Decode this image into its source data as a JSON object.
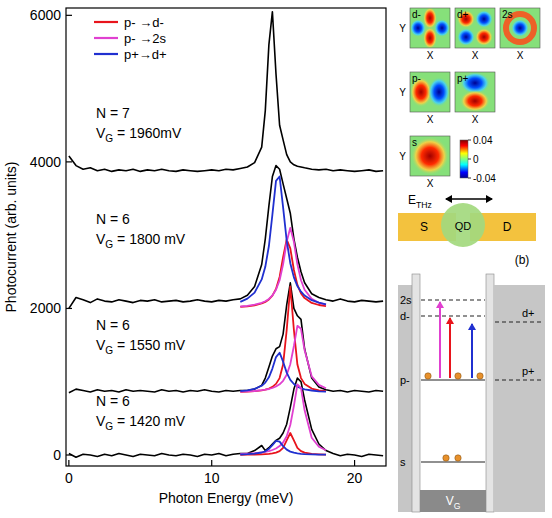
{
  "chart_data": {
    "type": "line",
    "x_label": "Photon Energy (meV)",
    "y_label": "Photocurrent (arb. units)",
    "xlim": [
      -0.2,
      22.2
    ],
    "xticks": [
      0,
      10,
      20
    ],
    "ylim": [
      -150,
      6100
    ],
    "yticks": [
      0,
      2000,
      4000,
      6000
    ],
    "grid": false,
    "legend": "upper left",
    "annotations": [
      {
        "n": "N = 7",
        "v": "V",
        "sub": "G",
        "rest": " = 1960mV"
      },
      {
        "n": "N = 6",
        "v": "V",
        "sub": "G",
        "rest": " = 1800 mV"
      },
      {
        "n": "N = 6",
        "v": "V",
        "sub": "G",
        "rest": " = 1550 mV"
      },
      {
        "n": "N = 6",
        "v": "V",
        "sub": "G",
        "rest": " = 1420 mV"
      }
    ],
    "series": [
      {
        "color": "#000000",
        "x": [
          0,
          0.5,
          1,
          1.5,
          2,
          2.5,
          3,
          3.5,
          4,
          4.5,
          5,
          5.5,
          6,
          6.5,
          7,
          7.5,
          8,
          8.5,
          9,
          9.5,
          10,
          10.5,
          11,
          11.5,
          12,
          12.5,
          13,
          13.5,
          13.75,
          14,
          14.25,
          14.5,
          14.75,
          15,
          15.25,
          15.5,
          15.75,
          16,
          16.25,
          16.5,
          17,
          17.5,
          18,
          18.5,
          19,
          19.5,
          20,
          20.5,
          21,
          21.5,
          22
        ],
        "values": [
          4080,
          3950,
          3900,
          3920,
          3880,
          3900,
          3870,
          3890,
          3880,
          3900,
          3870,
          3890,
          3880,
          3900,
          3880,
          3870,
          3890,
          3880,
          3870,
          3880,
          3890,
          3880,
          3900,
          3890,
          3910,
          3930,
          3990,
          4200,
          4700,
          5600,
          6050,
          5200,
          4500,
          4300,
          4100,
          4000,
          3960,
          3940,
          3930,
          3920,
          3900,
          3890,
          3900,
          3880,
          3890,
          3880,
          3870,
          3880,
          3890,
          3870,
          3880
        ]
      },
      {
        "color": "#000000",
        "x": [
          0,
          0.5,
          1,
          1.5,
          2,
          2.5,
          3,
          3.5,
          4,
          4.5,
          5,
          5.5,
          6,
          6.5,
          7,
          7.5,
          8,
          8.5,
          9,
          9.5,
          10,
          10.5,
          11,
          11.5,
          12,
          12.5,
          13,
          13.5,
          13.75,
          14,
          14.25,
          14.5,
          14.75,
          15,
          15.25,
          15.5,
          15.75,
          16,
          16.25,
          16.5,
          17,
          17.5,
          18,
          18.5,
          19,
          19.5,
          20,
          20.5,
          21,
          21.5,
          22
        ],
        "values": [
          2000,
          2150,
          2120,
          2080,
          2130,
          2100,
          2090,
          2120,
          2100,
          2080,
          2110,
          2100,
          2120,
          2090,
          2100,
          2110,
          2090,
          2100,
          2120,
          2100,
          2090,
          2110,
          2100,
          2120,
          2130,
          2180,
          2300,
          2600,
          2950,
          3400,
          3800,
          3950,
          3900,
          3700,
          3500,
          3300,
          2950,
          2700,
          2500,
          2350,
          2200,
          2150,
          2120,
          2100,
          2130,
          2100,
          2090,
          2110,
          2100,
          2090,
          2100
        ]
      },
      {
        "color": "#000000",
        "x": [
          0,
          0.5,
          1,
          1.5,
          2,
          2.5,
          3,
          3.5,
          4,
          4.5,
          5,
          5.5,
          6,
          6.5,
          7,
          7.5,
          8,
          8.5,
          9,
          9.5,
          10,
          10.5,
          11,
          11.5,
          12,
          12.5,
          13,
          13.5,
          13.75,
          14,
          14.25,
          14.5,
          14.75,
          15,
          15.25,
          15.5,
          15.75,
          16,
          16.25,
          16.5,
          17,
          17.5,
          18,
          18.5,
          19,
          19.5,
          20,
          20.5,
          21,
          21.5,
          22
        ],
        "values": [
          850,
          900,
          880,
          860,
          890,
          870,
          880,
          860,
          890,
          870,
          880,
          870,
          860,
          890,
          870,
          880,
          860,
          880,
          870,
          890,
          870,
          860,
          880,
          870,
          880,
          880,
          900,
          950,
          1050,
          1200,
          1350,
          1450,
          1480,
          1650,
          2050,
          2350,
          2000,
          1900,
          1850,
          1450,
          1050,
          930,
          890,
          870,
          880,
          860,
          880,
          870,
          860,
          880,
          870
        ]
      },
      {
        "color": "#000000",
        "x": [
          0,
          0.5,
          1,
          1.5,
          2,
          2.5,
          3,
          3.5,
          4,
          4.5,
          5,
          5.5,
          6,
          6.5,
          7,
          7.5,
          8,
          8.5,
          9,
          9.5,
          10,
          10.5,
          11,
          11.5,
          12,
          12.5,
          13,
          13.5,
          13.75,
          14,
          14.25,
          14.5,
          14.75,
          15,
          15.25,
          15.5,
          15.75,
          16,
          16.25,
          16.5,
          17,
          17.5,
          18,
          18.5,
          19,
          19.5,
          20,
          20.5,
          21,
          21.5,
          22
        ],
        "values": [
          20,
          -30,
          10,
          0,
          -20,
          10,
          -10,
          20,
          0,
          -20,
          10,
          0,
          -10,
          20,
          0,
          -10,
          10,
          0,
          -20,
          10,
          0,
          20,
          -10,
          10,
          20,
          20,
          60,
          130,
          60,
          100,
          150,
          200,
          230,
          300,
          420,
          650,
          900,
          1050,
          1000,
          750,
          350,
          150,
          60,
          20,
          -10,
          10,
          0,
          -20,
          10,
          0,
          -10
        ]
      },
      {
        "name": "p- →d-",
        "color": "#e8141c",
        "x": [
          12,
          12.5,
          13,
          13.5,
          13.75,
          14,
          14.25,
          14.5,
          14.75,
          15,
          15.25,
          15.5,
          15.75,
          16,
          16.25,
          16.5,
          17,
          17.5,
          18
        ],
        "values": [
          2021,
          2029,
          2043,
          2068,
          2090,
          2122,
          2176,
          2267,
          2430,
          2699,
          2941,
          2819,
          2525,
          2321,
          2206,
          2141,
          2076,
          2047,
          2031
        ]
      },
      {
        "name": "p- →2s",
        "color": "#e040d0",
        "x": [
          12,
          12.5,
          13,
          13.5,
          13.75,
          14,
          14.25,
          14.5,
          14.75,
          15,
          15.25,
          15.5,
          15.75,
          16,
          16.25,
          16.5,
          17,
          17.5,
          18
        ],
        "values": [
          2027,
          2036,
          2051,
          2077,
          2099,
          2130,
          2178,
          2255,
          2385,
          2601,
          2909,
          3100,
          2909,
          2601,
          2385,
          2255,
          2130,
          2077,
          2051
        ]
      },
      {
        "name": "p+→d+",
        "color": "#2030d0",
        "x": [
          12,
          12.5,
          13,
          13.5,
          13.75,
          14,
          14.25,
          14.5,
          14.75,
          15,
          15.25,
          15.5,
          15.75,
          16,
          16.25,
          16.5,
          17,
          17.5,
          18
        ],
        "values": [
          2090,
          2134,
          2216,
          2396,
          2569,
          2852,
          3281,
          3741,
          3800,
          3380,
          2925,
          2617,
          2424,
          2305,
          2228,
          2176,
          2113,
          2078,
          2057
        ]
      },
      {
        "color": "#e8141c",
        "x": [
          12,
          12.5,
          13,
          13.5,
          13.75,
          14,
          14.25,
          14.5,
          14.75,
          15,
          15.25,
          15.5,
          15.75,
          16,
          16.25,
          16.5,
          17,
          17.5,
          18
        ],
        "values": [
          861,
          864,
          871,
          882,
          891,
          906,
          929,
          970,
          1050,
          1234,
          1706,
          2300,
          1706,
          1234,
          1050,
          970,
          906,
          882,
          871
        ]
      },
      {
        "color": "#e040d0",
        "x": [
          12,
          12.5,
          13,
          13.5,
          13.75,
          14,
          14.25,
          14.5,
          14.75,
          15,
          15.25,
          15.5,
          15.75,
          16,
          16.25,
          16.5,
          17,
          17.5,
          18
        ],
        "values": [
          864,
          868,
          874,
          884,
          891,
          901,
          915,
          935,
          965,
          1013,
          1094,
          1239,
          1488,
          1763,
          1722,
          1429,
          1074,
          957,
          912
        ]
      },
      {
        "color": "#2030d0",
        "x": [
          12,
          12.5,
          13,
          13.5,
          13.75,
          14,
          14.25,
          14.5,
          14.75,
          15,
          15.25,
          15.5,
          15.75,
          16,
          16.25,
          16.5,
          17,
          17.5,
          18
        ],
        "values": [
          872,
          882,
          902,
          945,
          988,
          1060,
          1179,
          1336,
          1396,
          1273,
          1125,
          1026,
          969,
          933,
          912,
          897,
          880,
          870,
          865
        ]
      },
      {
        "color": "#e8141c",
        "x": [
          12,
          12.5,
          13,
          13.5,
          13.75,
          14,
          14.25,
          14.5,
          14.75,
          15,
          15.25,
          15.5,
          15.75,
          16,
          16.25,
          16.5,
          17,
          17.5,
          18
        ],
        "values": [
          3,
          4,
          6,
          9,
          12,
          15,
          22,
          33,
          54,
          99,
          199,
          300,
          199,
          99,
          54,
          33,
          15,
          9,
          6
        ]
      },
      {
        "color": "#e040d0",
        "x": [
          12,
          12.5,
          13,
          13.5,
          13.75,
          14,
          14.25,
          14.5,
          14.75,
          15,
          15.25,
          15.5,
          15.75,
          16,
          16.25,
          16.5,
          17,
          17.5,
          18
        ],
        "values": [
          15,
          19,
          25,
          36,
          43,
          54,
          68,
          89,
          121,
          171,
          257,
          410,
          671,
          962,
          917,
          610,
          236,
          113,
          65
        ]
      },
      {
        "color": "#2030d0",
        "x": [
          12,
          12.5,
          13,
          13.5,
          13.75,
          14,
          14.25,
          14.5,
          14.75,
          15,
          15.25,
          15.5,
          15.75,
          16,
          16.25,
          16.5,
          17,
          17.5,
          18
        ],
        "values": [
          7,
          11,
          18,
          34,
          51,
          82,
          134,
          192,
          183,
          122,
          74,
          47,
          32,
          23,
          17,
          13,
          8,
          6,
          4
        ]
      }
    ]
  },
  "diagram": {
    "orbitals": [
      "d-",
      "d+",
      "2s",
      "p-",
      "p+",
      "s"
    ],
    "axis_x": "X",
    "axis_y": "Y",
    "colorbar": {
      "range": [
        -0.04,
        0.04
      ],
      "ticks": [
        0.04,
        0,
        -0.04
      ]
    },
    "field": {
      "text": "E",
      "sub": "THz"
    },
    "device": {
      "source": "S",
      "dot": "QD",
      "drain": "D"
    },
    "panel_label": "(b)",
    "well_levels": [
      "2s",
      "d-",
      "p-",
      "s"
    ],
    "lead_levels": [
      "d+",
      "p+"
    ],
    "gate": {
      "text": "V",
      "sub": "G"
    }
  }
}
